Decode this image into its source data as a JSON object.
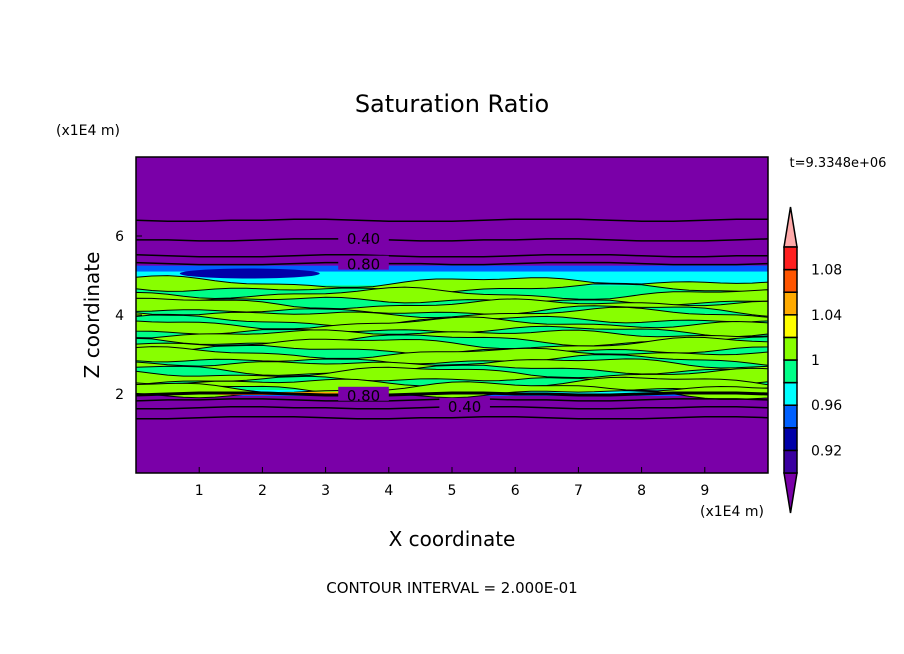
{
  "chart_data": {
    "type": "heatmap",
    "subtype": "filled contour",
    "title": "Saturation Ratio",
    "xlabel": "X coordinate",
    "ylabel": "Z coordinate",
    "x_unit_label": "(x1E4 m)",
    "y_unit_label": "(x1E4 m)",
    "xlim": [
      0,
      10
    ],
    "ylim": [
      0,
      8
    ],
    "x_ticks": [
      "1",
      "2",
      "3",
      "4",
      "5",
      "6",
      "7",
      "8",
      "9"
    ],
    "y_ticks": [
      "2",
      "4",
      "6"
    ],
    "time_label": "t=9.3348e+06",
    "footer": "CONTOUR INTERVAL = 2.000E-01",
    "contour_labels": [
      {
        "text": "0.40",
        "z": 5.95
      },
      {
        "text": "0.80",
        "z": 5.3
      },
      {
        "text": "0.80",
        "z": 1.98
      },
      {
        "text": "0.40",
        "z": 1.7
      }
    ],
    "colorbar": {
      "levels": [
        0.9,
        0.92,
        0.94,
        0.96,
        0.98,
        1.0,
        1.02,
        1.04,
        1.06,
        1.08,
        1.1
      ],
      "tick_labels": [
        "0.92",
        "0.96",
        "1",
        "1.04",
        "1.08"
      ],
      "colors": [
        "#3a00a0",
        "#0000a8",
        "#0060ff",
        "#00ffff",
        "#00ff88",
        "#88ff00",
        "#ffff00",
        "#ffaa00",
        "#ff5500",
        "#ff2020"
      ],
      "over_color": "#ffaaaa",
      "under_color": "#7a00a8",
      "extend": "both"
    },
    "background_color": "#7a00a8",
    "grid": false
  }
}
